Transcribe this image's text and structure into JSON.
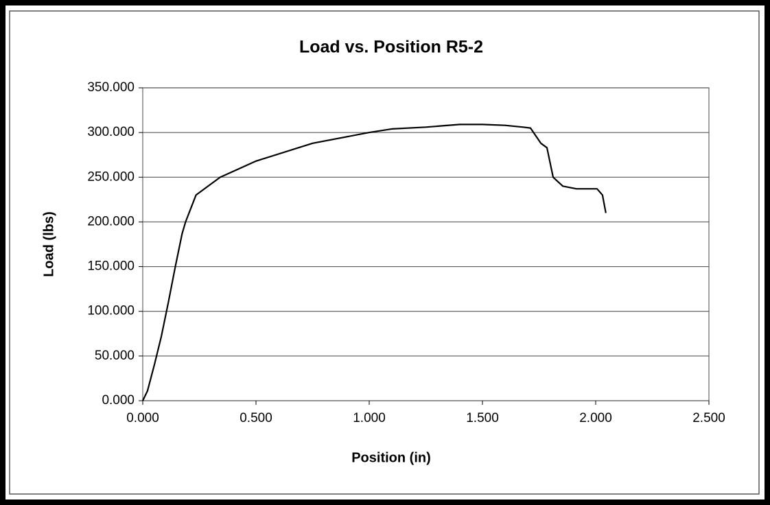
{
  "chart_data": {
    "type": "line",
    "title": "Load vs. Position R5-2",
    "x_label": "Position (in)",
    "y_label": "Load (lbs)",
    "x": [
      0,
      0.021,
      0.052,
      0.082,
      0.113,
      0.143,
      0.174,
      0.189,
      0.235,
      0.342,
      0.5,
      0.75,
      1.0,
      1.1,
      1.25,
      1.4,
      1.5,
      1.6,
      1.68,
      1.712,
      1.758,
      1.785,
      1.812,
      1.855,
      1.915,
      2.006,
      2.03,
      2.045
    ],
    "values": [
      0,
      11,
      41,
      72,
      110,
      149,
      187,
      200,
      230,
      250,
      268,
      288,
      300,
      304,
      306,
      309,
      309,
      308,
      306,
      305,
      288,
      283,
      250,
      240,
      237,
      237,
      230,
      210
    ],
    "color": "#000000",
    "xlim": [
      0,
      2.5
    ],
    "ylim": [
      0,
      350
    ],
    "xticks": [
      {
        "value": 0,
        "label": "0.000"
      },
      {
        "value": 0.5,
        "label": "0.500"
      },
      {
        "value": 1,
        "label": "1.000"
      },
      {
        "value": 1.5,
        "label": "1.500"
      },
      {
        "value": 2,
        "label": "2.000"
      },
      {
        "value": 2.5,
        "label": "2.500"
      }
    ],
    "yticks": [
      {
        "value": 0,
        "label": "0.000"
      },
      {
        "value": 50,
        "label": "50.000"
      },
      {
        "value": 100,
        "label": "100.000"
      },
      {
        "value": 150,
        "label": "150.000"
      },
      {
        "value": 200,
        "label": "200.000"
      },
      {
        "value": 250,
        "label": "250.000"
      },
      {
        "value": 300,
        "label": "300.000"
      },
      {
        "value": 350,
        "label": "350.000"
      }
    ],
    "grid": true
  }
}
